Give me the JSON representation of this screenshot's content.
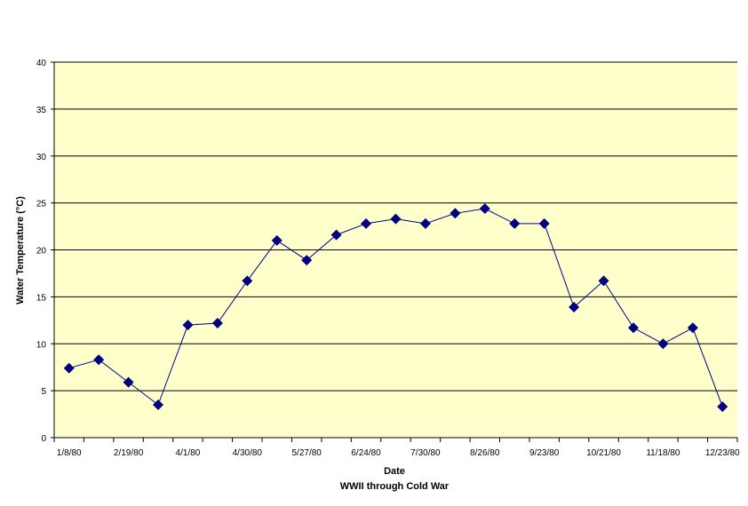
{
  "chart_data": {
    "type": "line",
    "title": "",
    "xlabel": "Date",
    "subtitle": "WWII through Cold War",
    "ylabel": "Water Temperature (°C)",
    "ylim": [
      0,
      40
    ],
    "yticks": [
      0,
      5,
      10,
      15,
      20,
      25,
      30,
      35,
      40
    ],
    "grid": true,
    "legend": "none",
    "colors": {
      "plot_background": "#ffffcc",
      "line": "#000080",
      "marker": "#000080",
      "gridline": "#000000"
    },
    "x_tick_labels": [
      "1/8/80",
      "2/19/80",
      "4/1/80",
      "4/30/80",
      "5/27/80",
      "6/24/80",
      "7/30/80",
      "8/26/80",
      "9/23/80",
      "10/21/80",
      "11/18/80",
      "12/23/80"
    ],
    "series": [
      {
        "values": [
          7.4,
          8.3,
          5.9,
          3.5,
          12.0,
          12.2,
          16.7,
          21.0,
          18.9,
          21.6,
          22.8,
          23.3,
          22.8,
          23.9,
          24.4,
          22.8,
          22.8,
          13.9,
          16.7,
          11.7,
          10.0,
          11.7,
          3.3
        ]
      }
    ]
  }
}
